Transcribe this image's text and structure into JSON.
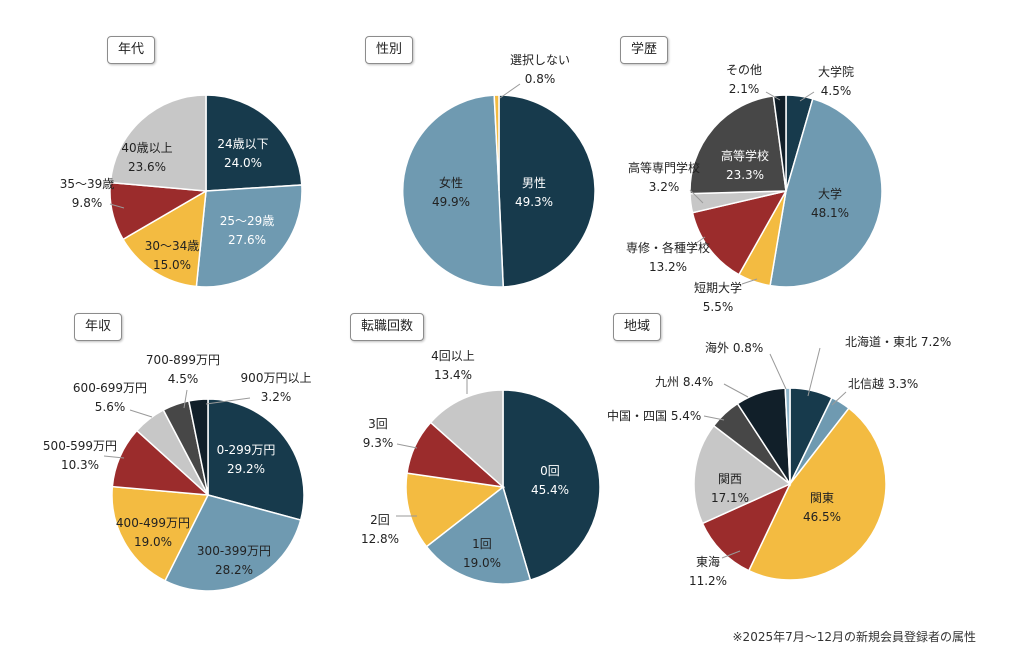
{
  "palette": {
    "navy": "#173a4c",
    "steel": "#6f9ab1",
    "gold": "#f3bb41",
    "crimson": "#9b2c2c",
    "gray": "#c7c7c7",
    "charcoal": "#474747",
    "black": "#111f29"
  },
  "footnote": "※2025年7月～12月の新規会員登録者の属性",
  "chart_data": [
    {
      "type": "pie",
      "title": "年代",
      "slices": [
        {
          "label": "24歳以下",
          "value": 24.0,
          "value_text": "24.0%",
          "color": "#173a4c"
        },
        {
          "label": "25～29歳",
          "value": 27.6,
          "value_text": "27.6%",
          "color": "#6f9ab1"
        },
        {
          "label": "30～34歳",
          "value": 15.0,
          "value_text": "15.0%",
          "color": "#f3bb41"
        },
        {
          "label": "35～39歳",
          "value": 9.8,
          "value_text": "9.8%",
          "color": "#9b2c2c"
        },
        {
          "label": "40歳以上",
          "value": 23.6,
          "value_text": "23.6%",
          "color": "#c7c7c7"
        }
      ]
    },
    {
      "type": "pie",
      "title": "性別",
      "slices": [
        {
          "label": "男性",
          "value": 49.3,
          "value_text": "49.3%",
          "color": "#173a4c"
        },
        {
          "label": "女性",
          "value": 49.9,
          "value_text": "49.9%",
          "color": "#6f9ab1"
        },
        {
          "label": "選択しない",
          "value": 0.8,
          "value_text": "0.8%",
          "color": "#f3bb41"
        }
      ]
    },
    {
      "type": "pie",
      "title": "学歴",
      "slices": [
        {
          "label": "大学院",
          "value": 4.5,
          "value_text": "4.5%",
          "color": "#173a4c"
        },
        {
          "label": "大学",
          "value": 48.1,
          "value_text": "48.1%",
          "color": "#6f9ab1"
        },
        {
          "label": "短期大学",
          "value": 5.5,
          "value_text": "5.5%",
          "color": "#f3bb41"
        },
        {
          "label": "専修・各種学校",
          "value": 13.2,
          "value_text": "13.2%",
          "color": "#9b2c2c"
        },
        {
          "label": "高等専門学校",
          "value": 3.2,
          "value_text": "3.2%",
          "color": "#c7c7c7"
        },
        {
          "label": "高等学校",
          "value": 23.3,
          "value_text": "23.3%",
          "color": "#474747"
        },
        {
          "label": "その他",
          "value": 2.1,
          "value_text": "2.1%",
          "color": "#111f29"
        }
      ]
    },
    {
      "type": "pie",
      "title": "年収",
      "slices": [
        {
          "label": "0-299万円",
          "value": 29.2,
          "value_text": "29.2%",
          "color": "#173a4c"
        },
        {
          "label": "300-399万円",
          "value": 28.2,
          "value_text": "28.2%",
          "color": "#6f9ab1"
        },
        {
          "label": "400-499万円",
          "value": 19.0,
          "value_text": "19.0%",
          "color": "#f3bb41"
        },
        {
          "label": "500-599万円",
          "value": 10.3,
          "value_text": "10.3%",
          "color": "#9b2c2c"
        },
        {
          "label": "600-699万円",
          "value": 5.6,
          "value_text": "5.6%",
          "color": "#c7c7c7"
        },
        {
          "label": "700-899万円",
          "value": 4.5,
          "value_text": "4.5%",
          "color": "#474747"
        },
        {
          "label": "900万円以上",
          "value": 3.2,
          "value_text": "3.2%",
          "color": "#111f29"
        }
      ]
    },
    {
      "type": "pie",
      "title": "転職回数",
      "slices": [
        {
          "label": "0回",
          "value": 45.4,
          "value_text": "45.4%",
          "color": "#173a4c"
        },
        {
          "label": "1回",
          "value": 19.0,
          "value_text": "19.0%",
          "color": "#6f9ab1"
        },
        {
          "label": "2回",
          "value": 12.8,
          "value_text": "12.8%",
          "color": "#f3bb41"
        },
        {
          "label": "3回",
          "value": 9.3,
          "value_text": "9.3%",
          "color": "#9b2c2c"
        },
        {
          "label": "4回以上",
          "value": 13.4,
          "value_text": "13.4%",
          "color": "#c7c7c7"
        }
      ]
    },
    {
      "type": "pie",
      "title": "地域",
      "slices": [
        {
          "label": "北海道・東北",
          "value": 7.2,
          "value_text": "7.2%",
          "color": "#173a4c"
        },
        {
          "label": "北信越",
          "value": 3.3,
          "value_text": "3.3%",
          "color": "#6f9ab1"
        },
        {
          "label": "関東",
          "value": 46.5,
          "value_text": "46.5%",
          "color": "#f3bb41"
        },
        {
          "label": "東海",
          "value": 11.2,
          "value_text": "11.2%",
          "color": "#9b2c2c"
        },
        {
          "label": "関西",
          "value": 17.1,
          "value_text": "17.1%",
          "color": "#c7c7c7"
        },
        {
          "label": "中国・四国",
          "value": 5.4,
          "value_text": "5.4%",
          "color": "#474747"
        },
        {
          "label": "九州",
          "value": 8.4,
          "value_text": "8.4%",
          "color": "#111f29"
        },
        {
          "label": "海外",
          "value": 0.8,
          "value_text": "0.8%",
          "color": "#8fb5c9"
        }
      ]
    }
  ]
}
